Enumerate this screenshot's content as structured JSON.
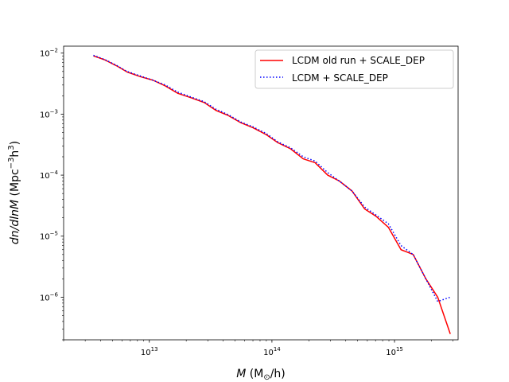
{
  "chart_data": {
    "type": "line",
    "title": "",
    "xlabel_main": "M",
    "xlabel_unit_open": " (M",
    "xlabel_unit_sub": "⊙",
    "xlabel_unit_close": "/h)",
    "ylabel_main": "dn/dlnM",
    "ylabel_unit_open": " (Mpc",
    "ylabel_unit_sup1": "−3",
    "ylabel_unit_mid": "h",
    "ylabel_unit_sup2": "3",
    "ylabel_unit_close": ")",
    "xscale": "log",
    "yscale": "log",
    "xlim": [
      2000000000000.0,
      3300000000000000.0
    ],
    "ylim": [
      2e-07,
      0.013
    ],
    "xticks": [
      {
        "base": "10",
        "exp": "13",
        "value": 10000000000000.0
      },
      {
        "base": "10",
        "exp": "14",
        "value": 100000000000000.0
      },
      {
        "base": "10",
        "exp": "15",
        "value": 1000000000000000.0
      }
    ],
    "yticks": [
      {
        "base": "10",
        "exp": "−6",
        "value": 1e-06
      },
      {
        "base": "10",
        "exp": "−5",
        "value": 1e-05
      },
      {
        "base": "10",
        "exp": "−4",
        "value": 0.0001
      },
      {
        "base": "10",
        "exp": "−3",
        "value": 0.001
      },
      {
        "base": "10",
        "exp": "−2",
        "value": 0.01
      }
    ],
    "grid": false,
    "legend_position": "top-right",
    "series": [
      {
        "name": "LCDM old run  + SCALE_DEP",
        "color": "#ff0000",
        "style": "solid",
        "points": [
          [
            3500000000000.0,
            0.009
          ],
          [
            4300000000000.0,
            0.0078
          ],
          [
            5400000000000.0,
            0.0062
          ],
          [
            6600000000000.0,
            0.0049
          ],
          [
            8500000000000.0,
            0.0041
          ],
          [
            10700000000000.0,
            0.0036
          ],
          [
            13500000000000.0,
            0.0029
          ],
          [
            17000000000000.0,
            0.0022
          ],
          [
            22000000000000.0,
            0.00185
          ],
          [
            28000000000000.0,
            0.00155
          ],
          [
            35000000000000.0,
            0.00115
          ],
          [
            44000000000000.0,
            0.00095
          ],
          [
            56000000000000.0,
            0.00072
          ],
          [
            70000000000000.0,
            0.0006
          ],
          [
            90000000000000.0,
            0.00046
          ],
          [
            112000000000000.0,
            0.00034
          ],
          [
            142000000000000.0,
            0.00027
          ],
          [
            180000000000000.0,
            0.000185
          ],
          [
            225000000000000.0,
            0.00016
          ],
          [
            285000000000000.0,
            0.0001
          ],
          [
            355000000000000.0,
            8e-05
          ],
          [
            450000000000000.0,
            5.5e-05
          ],
          [
            570000000000000.0,
            2.8e-05
          ],
          [
            710000000000000.0,
            2.1e-05
          ],
          [
            890000000000000.0,
            1.4e-05
          ],
          [
            1130000000000000.0,
            6e-06
          ],
          [
            1420000000000000.0,
            5e-06
          ],
          [
            1800000000000000.0,
            2e-06
          ],
          [
            2250000000000000.0,
            1e-06
          ],
          [
            2850000000000000.0,
            2.5e-07
          ]
        ]
      },
      {
        "name": "LCDM + SCALE_DEP",
        "color": "#0000ff",
        "style": "dotted",
        "points": [
          [
            3500000000000.0,
            0.0092
          ],
          [
            4300000000000.0,
            0.0079
          ],
          [
            5400000000000.0,
            0.0063
          ],
          [
            6600000000000.0,
            0.005
          ],
          [
            8500000000000.0,
            0.0042
          ],
          [
            10700000000000.0,
            0.0036
          ],
          [
            13500000000000.0,
            0.003
          ],
          [
            17000000000000.0,
            0.0023
          ],
          [
            22000000000000.0,
            0.0019
          ],
          [
            28000000000000.0,
            0.0016
          ],
          [
            35000000000000.0,
            0.0012
          ],
          [
            44000000000000.0,
            0.00098
          ],
          [
            56000000000000.0,
            0.00074
          ],
          [
            70000000000000.0,
            0.00062
          ],
          [
            90000000000000.0,
            0.00048
          ],
          [
            112000000000000.0,
            0.00035
          ],
          [
            142000000000000.0,
            0.00028
          ],
          [
            180000000000000.0,
            0.0002
          ],
          [
            225000000000000.0,
            0.00017
          ],
          [
            285000000000000.0,
            0.00011
          ],
          [
            355000000000000.0,
            8e-05
          ],
          [
            450000000000000.0,
            5.5e-05
          ],
          [
            570000000000000.0,
            3e-05
          ],
          [
            710000000000000.0,
            2.2e-05
          ],
          [
            890000000000000.0,
            1.6e-05
          ],
          [
            1130000000000000.0,
            7e-06
          ],
          [
            1420000000000000.0,
            5e-06
          ],
          [
            1800000000000000.0,
            2e-06
          ],
          [
            2250000000000000.0,
            8.5e-07
          ],
          [
            2850000000000000.0,
            1e-06
          ]
        ]
      }
    ]
  }
}
